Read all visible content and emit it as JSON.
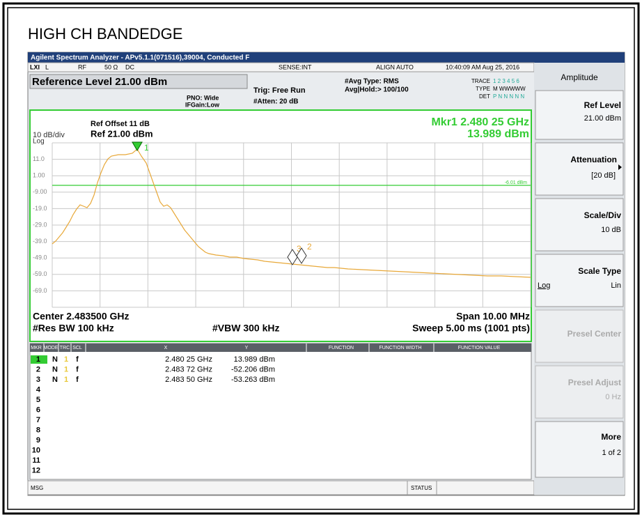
{
  "header": {
    "title": "HIGH CH BANDEDGE"
  },
  "titlebar": {
    "text": "Agilent Spectrum Analyzer - APv5.1.1(071516),39004, Conducted F"
  },
  "status": {
    "lxi": "LXI",
    "l": "L",
    "rf": "RF",
    "impedance": "50 Ω",
    "coupling": "DC",
    "sense": "SENSE:INT",
    "align": "ALIGN AUTO",
    "datetime": "10:40:09 AM Aug 25, 2016"
  },
  "settings": {
    "ref_level": "Reference Level 21.00 dBm",
    "pno": "PNO: Wide",
    "ifgain": "IFGain:Low",
    "trig": "Trig: Free Run",
    "atten": "#Atten: 20 dB",
    "avg_type": "#Avg Type: RMS",
    "avg_hold": "Avg|Hold:> 100/100",
    "trace_label": "TRACE",
    "trace_values": "1 2 3 4 5 6",
    "type_label": "TYPE",
    "type_values": "M WWWWW",
    "det_label": "DET",
    "det_values": "P N N N N N"
  },
  "display": {
    "ref_offset": "Ref Offset 11 dB",
    "scale": "10 dB/div",
    "ref": "Ref 21.00 dBm",
    "log": "Log",
    "mkr_freq": "Mkr1 2.480 25 GHz",
    "mkr_level": "13.989 dBm",
    "display_line": "-6.01 dBm",
    "y_labels": [
      "11.0",
      "1.00",
      "-9.00",
      "-19.0",
      "-29.0",
      "-39.0",
      "-49.0",
      "-59.0",
      "-69.0"
    ],
    "marker_labels": [
      "1",
      "3",
      "2"
    ],
    "center": "Center 2.483500 GHz",
    "span": "Span 10.00 MHz",
    "rbw": "#Res BW 100 kHz",
    "vbw": "#VBW 300 kHz",
    "sweep": "Sweep  5.00 ms (1001 pts)"
  },
  "markers": {
    "columns": [
      "MKR",
      "MODE",
      "TRC",
      "SCL",
      "X",
      "Y",
      "FUNCTION",
      "FUNCTION WIDTH",
      "FUNCTION VALUE"
    ],
    "rows": [
      {
        "n": "1",
        "mode": "N",
        "trc": "1",
        "scl": "f",
        "x": "2.480 25 GHz",
        "y": "13.989 dBm"
      },
      {
        "n": "2",
        "mode": "N",
        "trc": "1",
        "scl": "f",
        "x": "2.483 72 GHz",
        "y": "-52.206 dBm"
      },
      {
        "n": "3",
        "mode": "N",
        "trc": "1",
        "scl": "f",
        "x": "2.483 50 GHz",
        "y": "-53.263 dBm"
      },
      {
        "n": "4"
      },
      {
        "n": "5"
      },
      {
        "n": "6"
      },
      {
        "n": "7"
      },
      {
        "n": "8"
      },
      {
        "n": "9"
      },
      {
        "n": "10"
      },
      {
        "n": "11"
      },
      {
        "n": "12"
      }
    ]
  },
  "statusbar": {
    "msg": "MSG",
    "status": "STATUS"
  },
  "softkeys": {
    "menu": "Amplitude",
    "ref_level": "Ref Level",
    "ref_level_value": "21.00 dBm",
    "attenuation": "Attenuation",
    "attenuation_value": "[20 dB]",
    "scale_div": "Scale/Div",
    "scale_div_value": "10 dB",
    "scale_type": "Scale Type",
    "scale_type_log": "Log",
    "scale_type_lin": "Lin",
    "presel_center": "Presel Center",
    "presel_adjust": "Presel Adjust",
    "presel_adjust_value": "0 Hz",
    "more": "More",
    "more_value": "1 of 2"
  }
}
